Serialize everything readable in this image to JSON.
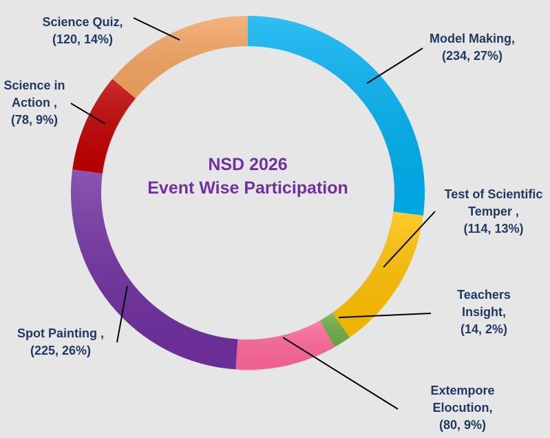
{
  "chart_data": {
    "type": "pie",
    "variant": "donut",
    "title": "NSD 2026",
    "subtitle": "Event Wise Participation",
    "legend": "none",
    "slices": [
      {
        "category": "Model Making,",
        "value": 234,
        "percent": "27%",
        "color": "#00b0f0",
        "label_lines": [
          "Model Making,",
          "(234, 27%)"
        ]
      },
      {
        "category": "Test of Scientific Temper ,",
        "value": 114,
        "percent": "13%",
        "color": "#ffc000",
        "label_lines": [
          "Test of Scientific",
          "Temper ,",
          "(114, 13%)"
        ]
      },
      {
        "category": "Teachers Insight,",
        "value": 14,
        "percent": "2%",
        "color": "#70ad47",
        "label_lines": [
          "Teachers",
          "Insight,",
          "(14, 2%)"
        ]
      },
      {
        "category": "Extempore Elocution,",
        "value": 80,
        "percent": "9%",
        "color": "#ff6699",
        "label_lines": [
          "Extempore",
          "Elocution,",
          "(80, 9%)"
        ]
      },
      {
        "category": "Spot Painting ,",
        "value": 225,
        "percent": "26%",
        "color": "#7030a0",
        "label_lines": [
          "Spot Painting ,",
          "(225, 26%)"
        ]
      },
      {
        "category": "Science in Action ,",
        "value": 78,
        "percent": "9%",
        "color": "#c00000",
        "label_lines": [
          "Science in",
          "Action ,",
          "(78, 9%)"
        ]
      },
      {
        "category": "Science Quiz,",
        "value": 120,
        "percent": "14%",
        "color": "#f4a460",
        "label_lines": [
          "Science Quiz,",
          "(120, 14%)"
        ]
      }
    ]
  }
}
